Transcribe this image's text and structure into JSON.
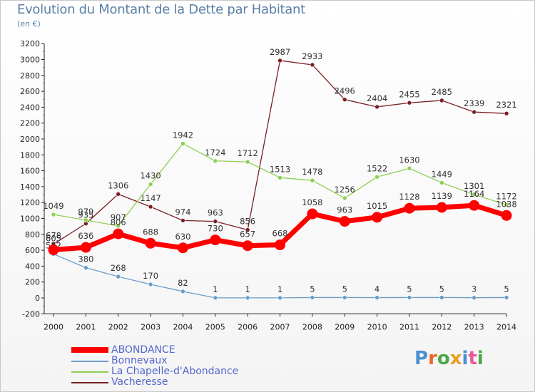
{
  "title": "Evolution du Montant de la Dette par Habitant",
  "subtitle": "(en €)",
  "logo": {
    "text": "Proxiti",
    "colors": [
      "#4a8fd4",
      "#e8682a",
      "#4aa84a",
      "#e8a020",
      "#4a8fd4",
      "#e85a9a",
      "#4aa84a"
    ]
  },
  "chart_data": {
    "type": "line",
    "x": [
      2000,
      2001,
      2002,
      2003,
      2004,
      2005,
      2006,
      2007,
      2008,
      2009,
      2010,
      2011,
      2012,
      2013,
      2014
    ],
    "ylim": [
      -200,
      3200
    ],
    "yticks": [
      -200,
      0,
      200,
      400,
      600,
      800,
      1000,
      1200,
      1400,
      1600,
      1800,
      2000,
      2200,
      2400,
      2600,
      2800,
      3000,
      3200
    ],
    "grid": false,
    "legend_position": "bottom-left",
    "series": [
      {
        "name": "Vacheresse",
        "color": "#7a1f22",
        "width": 1.3,
        "values": [
          678,
          935,
          1306,
          1147,
          974,
          963,
          856,
          2987,
          2933,
          2496,
          2404,
          2455,
          2485,
          2339,
          2321
        ],
        "labels": [
          "678",
          "935",
          "1306",
          "1147",
          "974",
          "963",
          "856",
          "2987",
          "2933",
          "2496",
          "2404",
          "2455",
          "2485",
          "2339",
          "2321"
        ]
      },
      {
        "name": "La Chapelle-d'Abondance",
        "color": "#8fcf50",
        "width": 1.3,
        "values": [
          1049,
          979,
          907,
          1430,
          1942,
          1724,
          1712,
          1513,
          1478,
          1256,
          1522,
          1630,
          1449,
          1301,
          1172
        ],
        "labels": [
          "1049",
          "979",
          "907",
          "1430",
          "1942",
          "1724",
          "1712",
          "1513",
          "1478",
          "1256",
          "1522",
          "1630",
          "1449",
          "1301",
          "1172"
        ]
      },
      {
        "name": "Bonnevaux",
        "color": "#6a9cc8",
        "width": 1.3,
        "values": [
          552,
          380,
          268,
          170,
          82,
          1,
          1,
          1,
          5,
          5,
          4,
          5,
          5,
          3,
          5
        ],
        "labels": [
          "552",
          "380",
          "268",
          "170",
          "82",
          "1",
          "1",
          "1",
          "5",
          "5",
          "4",
          "5",
          "5",
          "3",
          "5"
        ]
      },
      {
        "name": "ABONDANCE",
        "color": "#ff0000",
        "width": 7,
        "values": [
          605,
          636,
          806,
          688,
          630,
          730,
          657,
          668,
          1058,
          963,
          1015,
          1128,
          1139,
          1164,
          1038
        ],
        "labels": [
          "605",
          "636",
          "806",
          "688",
          "630",
          "730",
          "657",
          "668",
          "1058",
          "963",
          "1015",
          "1128",
          "1139",
          "1164",
          "1038"
        ]
      }
    ],
    "legend_order": [
      "ABONDANCE",
      "Bonnevaux",
      "La Chapelle-d'Abondance",
      "Vacheresse"
    ]
  }
}
